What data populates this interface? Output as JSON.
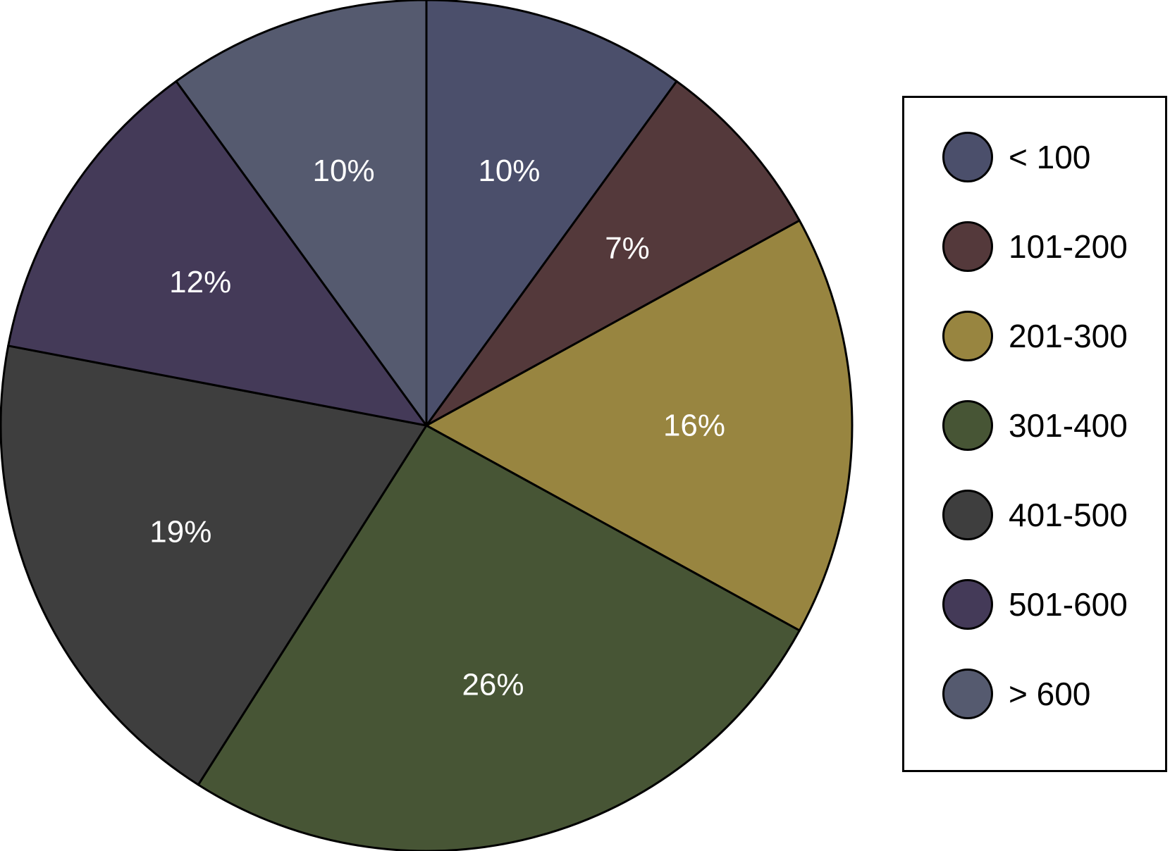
{
  "chart_data": {
    "type": "pie",
    "categories": [
      "< 100",
      "101-200",
      "201-300",
      "301-400",
      "401-500",
      "501-600",
      "> 600"
    ],
    "values": [
      10,
      7,
      16,
      26,
      19,
      12,
      10
    ],
    "labels": [
      "10%",
      "7%",
      "16%",
      "26%",
      "19%",
      "12%",
      "10%"
    ],
    "colors": [
      "#4b4f6b",
      "#54393b",
      "#988540",
      "#475535",
      "#3e3e3e",
      "#443a58",
      "#555a6f"
    ],
    "start": "12 o'clock",
    "direction": "clockwise",
    "legend_position": "right"
  }
}
